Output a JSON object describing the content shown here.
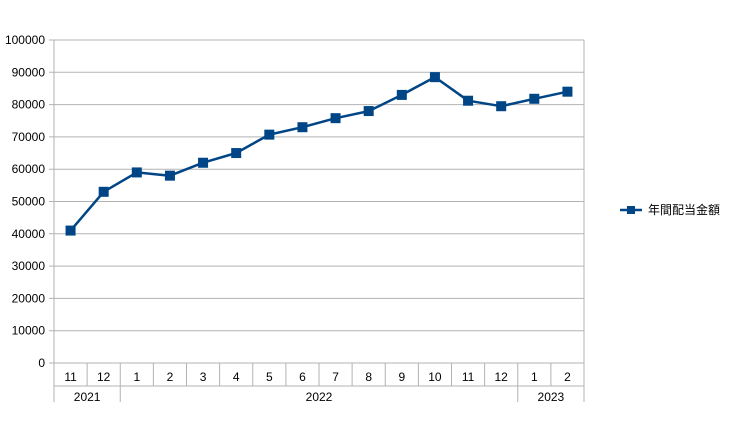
{
  "chart_data": {
    "type": "line",
    "title": "",
    "xlabel": "",
    "ylabel": "",
    "ylim": [
      0,
      100000
    ],
    "y_ticks": [
      "0",
      "10000",
      "20000",
      "30000",
      "40000",
      "50000",
      "60000",
      "70000",
      "80000",
      "90000",
      "100000"
    ],
    "grid": "horizontal",
    "legend_position": "right",
    "categories": [
      "11",
      "12",
      "1",
      "2",
      "3",
      "4",
      "5",
      "6",
      "7",
      "8",
      "9",
      "10",
      "11",
      "12",
      "1",
      "2"
    ],
    "year_groups": [
      {
        "label": "2021",
        "count": 2
      },
      {
        "label": "2022",
        "count": 12
      },
      {
        "label": "2023",
        "count": 2
      }
    ],
    "series": [
      {
        "name": "年間配当金額",
        "color": "#004586",
        "marker": "square",
        "values": [
          41000,
          53000,
          59000,
          58000,
          62000,
          65000,
          70700,
          73000,
          75800,
          78000,
          83000,
          88500,
          81200,
          79500,
          81800,
          84000
        ]
      }
    ]
  }
}
